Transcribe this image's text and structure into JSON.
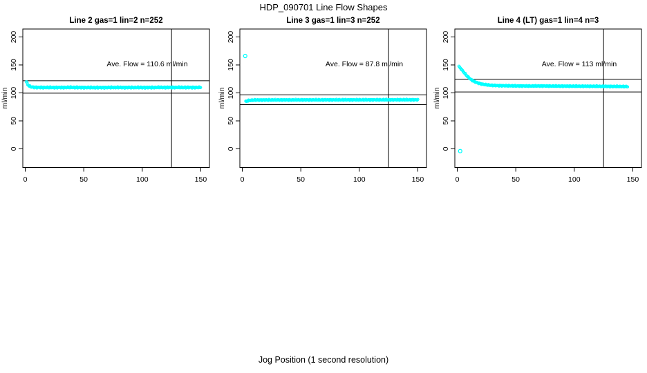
{
  "chart_data": {
    "type": "scatter",
    "title": "HDP_090701  Line Flow Shapes",
    "xlabel": "Jog Position (1 second resolution)",
    "ylabel": "ml/min",
    "point_color": "#00FFFF",
    "line_color": "#000000",
    "x_ticks": [
      0,
      50,
      100,
      150
    ],
    "y_ticks": [
      0,
      50,
      100,
      150,
      200
    ],
    "xlim": [
      -5,
      157
    ],
    "ylim": [
      -33,
      213
    ],
    "grid": false,
    "vline_x": 125,
    "panels": [
      {
        "title": "Line 2 gas=1 lin=2 n=252",
        "ave_flow": 110.6,
        "n": 252,
        "annotation": "Ave. Flow =  110.6  ml/min",
        "ref_line_upper": 121.7,
        "ref_line_lower": 99.5,
        "noise": 1.1,
        "points": [
          [
            1,
            120
          ],
          [
            1.6,
            117
          ],
          [
            2.2,
            115
          ],
          [
            3,
            113
          ],
          [
            4,
            111.5
          ],
          [
            5,
            110.8
          ],
          [
            7,
            110.2
          ],
          [
            10,
            109.8
          ],
          [
            20,
            109.6
          ],
          [
            40,
            109.8
          ],
          [
            60,
            109.5
          ],
          [
            80,
            109.7
          ],
          [
            100,
            109.6
          ],
          [
            120,
            109.8
          ],
          [
            150,
            109.7
          ]
        ],
        "outliers": []
      },
      {
        "title": "Line 3 gas=1 lin=3 n=252",
        "ave_flow": 87.8,
        "n": 252,
        "annotation": "Ave. Flow =  87.8  ml/min",
        "ref_line_upper": 96.6,
        "ref_line_lower": 79.0,
        "noise": 1.0,
        "points": [
          [
            3,
            84.5
          ],
          [
            4,
            85.5
          ],
          [
            5,
            86.2
          ],
          [
            7,
            86.8
          ],
          [
            10,
            87.2
          ],
          [
            20,
            87.4
          ],
          [
            50,
            87.5
          ],
          [
            100,
            87.6
          ],
          [
            150,
            87.7
          ]
        ],
        "outliers": [
          [
            2.5,
            166
          ]
        ]
      },
      {
        "title": "Line 4 (LT) gas=1 lin=4 n=3",
        "ave_flow": 113,
        "n": 3,
        "annotation": "Ave. Flow =  113  ml/min",
        "ref_line_upper": 124.3,
        "ref_line_lower": 101.7,
        "noise": 0.9,
        "points": [
          [
            1.5,
            147
          ],
          [
            2,
            146
          ],
          [
            3,
            143.5
          ],
          [
            4,
            141
          ],
          [
            5,
            138.5
          ],
          [
            6,
            136
          ],
          [
            7,
            133.5
          ],
          [
            8,
            131
          ],
          [
            9,
            129
          ],
          [
            10,
            127
          ],
          [
            12,
            123.5
          ],
          [
            14,
            121
          ],
          [
            16,
            119
          ],
          [
            18,
            117.5
          ],
          [
            20,
            116.3
          ],
          [
            23,
            115
          ],
          [
            26,
            114.2
          ],
          [
            30,
            113.5
          ],
          [
            35,
            113
          ],
          [
            40,
            112.8
          ],
          [
            50,
            112.5
          ],
          [
            60,
            112.3
          ],
          [
            70,
            112.4
          ],
          [
            80,
            112.2
          ],
          [
            90,
            112.1
          ],
          [
            100,
            112
          ],
          [
            110,
            111.9
          ],
          [
            120,
            111.8
          ],
          [
            130,
            111.6
          ],
          [
            140,
            111.4
          ],
          [
            146,
            111.3
          ]
        ],
        "outliers": [
          [
            2.5,
            -4
          ]
        ]
      }
    ]
  }
}
